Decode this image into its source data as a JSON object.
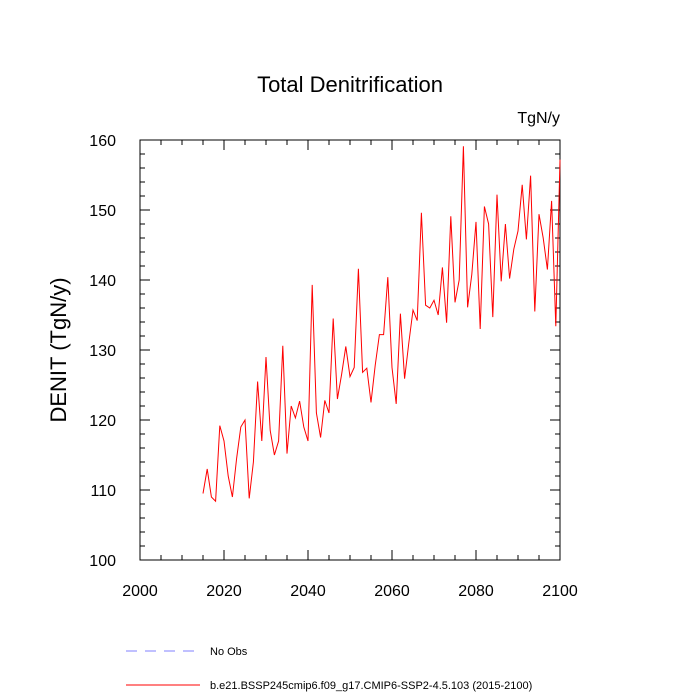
{
  "chart_data": {
    "type": "line",
    "title": "Total Denitrification",
    "units_label": "TgN/y",
    "xlabel": "",
    "ylabel": "DENIT  (TgN/y)",
    "xlim": [
      2000,
      2100
    ],
    "ylim": [
      100,
      160
    ],
    "xticks": [
      2000,
      2020,
      2040,
      2060,
      2080,
      2100
    ],
    "yticks": [
      100,
      110,
      120,
      130,
      140,
      150,
      160
    ],
    "grid": false,
    "legend_position": "bottom-left, below plot",
    "series": [
      {
        "name": "b.e21.BSSP245cmip6.f09_g17.CMIP6-SSP2-4.5.103 (2015-2100)",
        "color": "#ff0000",
        "style": "solid",
        "x": [
          2015,
          2016,
          2017,
          2018,
          2019,
          2020,
          2021,
          2022,
          2023,
          2024,
          2025,
          2026,
          2027,
          2028,
          2029,
          2030,
          2031,
          2032,
          2033,
          2034,
          2035,
          2036,
          2037,
          2038,
          2039,
          2040,
          2041,
          2042,
          2043,
          2044,
          2045,
          2046,
          2047,
          2048,
          2049,
          2050,
          2051,
          2052,
          2053,
          2054,
          2055,
          2056,
          2057,
          2058,
          2059,
          2060,
          2061,
          2062,
          2063,
          2064,
          2065,
          2066,
          2067,
          2068,
          2069,
          2070,
          2071,
          2072,
          2073,
          2074,
          2075,
          2076,
          2077,
          2078,
          2079,
          2080,
          2081,
          2082,
          2083,
          2084,
          2085,
          2086,
          2087,
          2088,
          2089,
          2090,
          2091,
          2092,
          2093,
          2094,
          2095,
          2096,
          2097,
          2098,
          2099,
          2100
        ],
        "values": [
          109.5,
          113.0,
          109.0,
          108.4,
          119.2,
          117.0,
          112.0,
          109.0,
          114.5,
          119.0,
          120.0,
          108.8,
          114.0,
          125.5,
          117.0,
          129.0,
          118.5,
          115.0,
          117.0,
          130.6,
          115.2,
          122.0,
          120.3,
          122.7,
          119.0,
          117.0,
          139.3,
          121.0,
          117.5,
          122.8,
          121.0,
          134.5,
          123.0,
          126.5,
          130.5,
          126.2,
          127.5,
          141.6,
          126.8,
          127.4,
          122.5,
          127.8,
          132.2,
          132.2,
          140.4,
          127.5,
          122.3,
          135.2,
          125.9,
          131.0,
          135.7,
          134.2,
          149.6,
          136.4,
          136.0,
          137.1,
          135.0,
          141.8,
          133.9,
          149.1,
          136.8,
          140.0,
          159.1,
          136.1,
          140.8,
          148.3,
          133.0,
          150.5,
          148.0,
          134.7,
          152.2,
          139.8,
          148.0,
          140.2,
          144.4,
          147.0,
          153.6,
          145.8,
          154.9,
          135.5,
          149.4,
          146.0,
          141.5,
          151.3,
          133.4,
          157.2
        ]
      },
      {
        "name": "No Obs",
        "color": "#8080ff",
        "style": "dashed",
        "x": [],
        "values": []
      }
    ]
  }
}
